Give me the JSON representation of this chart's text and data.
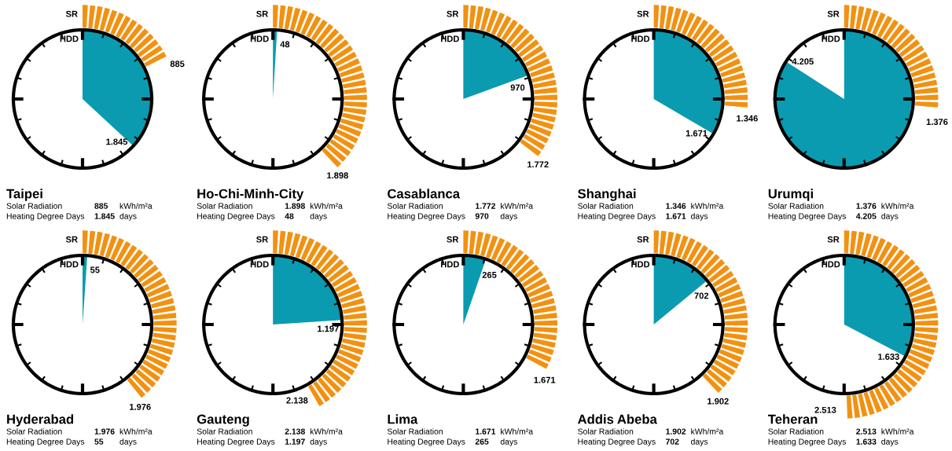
{
  "chart_data": [
    {
      "type": "other",
      "title": "Taipei",
      "annotations": [
        "SR",
        "HDD",
        "kWh/m²a",
        "days"
      ],
      "categories": [
        "Solar Radiation",
        "Heating Degree Days"
      ],
      "values": [
        885,
        1845
      ],
      "value_labels": [
        "885",
        "1.845"
      ],
      "colors": [
        "#f29111",
        "#0a9bb0"
      ]
    },
    {
      "type": "other",
      "title": "Ho-Chi-Minh-City",
      "annotations": [
        "SR",
        "HDD",
        "kWh/m²a",
        "days"
      ],
      "categories": [
        "Solar Radiation",
        "Heating Degree Days"
      ],
      "values": [
        1898,
        48
      ],
      "value_labels": [
        "1.898",
        "48"
      ],
      "colors": [
        "#f29111",
        "#0a9bb0"
      ]
    },
    {
      "type": "other",
      "title": "Casablanca",
      "annotations": [
        "SR",
        "HDD",
        "kWh/m²a",
        "days"
      ],
      "categories": [
        "Solar Radiation",
        "Heating Degree Days"
      ],
      "values": [
        1772,
        970
      ],
      "value_labels": [
        "1.772",
        "970"
      ],
      "colors": [
        "#f29111",
        "#0a9bb0"
      ]
    },
    {
      "type": "other",
      "title": "Shanghai",
      "annotations": [
        "SR",
        "HDD",
        "kWh/m²a",
        "days"
      ],
      "categories": [
        "Solar Radiation",
        "Heating Degree Days"
      ],
      "values": [
        1346,
        1671
      ],
      "value_labels": [
        "1.346",
        "1.671"
      ],
      "colors": [
        "#f29111",
        "#0a9bb0"
      ]
    },
    {
      "type": "other",
      "title": "Urumqi",
      "annotations": [
        "SR",
        "HDD",
        "kWh/m²a",
        "days"
      ],
      "categories": [
        "Solar Radiation",
        "Heating Degree Days"
      ],
      "values": [
        1376,
        4205
      ],
      "value_labels": [
        "1.376",
        "4.205"
      ],
      "colors": [
        "#f29111",
        "#0a9bb0"
      ]
    },
    {
      "type": "other",
      "title": "Hyderabad",
      "annotations": [
        "SR",
        "HDD",
        "kWh/m²a",
        "days"
      ],
      "categories": [
        "Solar Radiation",
        "Heating Degree Days"
      ],
      "values": [
        1976,
        55
      ],
      "value_labels": [
        "1.976",
        "55"
      ],
      "colors": [
        "#f29111",
        "#0a9bb0"
      ]
    },
    {
      "type": "other",
      "title": "Gauteng",
      "annotations": [
        "SR",
        "HDD",
        "kWh/m²a",
        "days"
      ],
      "categories": [
        "Solar Radiation",
        "Heating Degree Days"
      ],
      "values": [
        2138,
        1197
      ],
      "value_labels": [
        "2.138",
        "1.197"
      ],
      "colors": [
        "#f29111",
        "#0a9bb0"
      ]
    },
    {
      "type": "other",
      "title": "Lima",
      "annotations": [
        "SR",
        "HDD",
        "kWh/m²a",
        "days"
      ],
      "categories": [
        "Solar Radiation",
        "Heating Degree Days"
      ],
      "values": [
        1671,
        265
      ],
      "value_labels": [
        "1.671",
        "265"
      ],
      "colors": [
        "#f29111",
        "#0a9bb0"
      ]
    },
    {
      "type": "other",
      "title": "Addis Abeba",
      "annotations": [
        "SR",
        "HDD",
        "kWh/m²a",
        "days"
      ],
      "categories": [
        "Solar Radiation",
        "Heating Degree Days"
      ],
      "values": [
        1902,
        702
      ],
      "value_labels": [
        "1.902",
        "702"
      ],
      "colors": [
        "#f29111",
        "#0a9bb0"
      ]
    },
    {
      "type": "other",
      "title": "Teheran",
      "annotations": [
        "SR",
        "HDD",
        "kWh/m²a",
        "days"
      ],
      "categories": [
        "Solar Radiation",
        "Heating Degree Days"
      ],
      "values": [
        2513,
        1633
      ],
      "value_labels": [
        "2.513",
        "1.633"
      ],
      "colors": [
        "#f29111",
        "#0a9bb0"
      ]
    }
  ]
}
